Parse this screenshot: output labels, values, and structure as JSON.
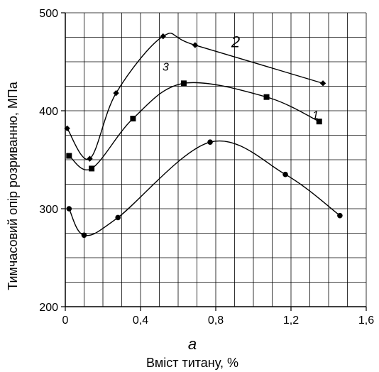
{
  "chart_data": {
    "type": "line",
    "panel_label": "а",
    "xlabel": "Вміст титану, %",
    "ylabel": "Тимчасовий опір розриванню, МПа",
    "xlim": [
      0,
      1.6
    ],
    "ylim": [
      200,
      500
    ],
    "x_ticks": [
      "0",
      "0,4",
      "0,8",
      "1,2",
      "1,6"
    ],
    "x_tick_values": [
      0,
      0.4,
      0.8,
      1.2,
      1.6
    ],
    "y_ticks": [
      "200",
      "300",
      "400",
      "500"
    ],
    "y_tick_values": [
      200,
      300,
      400,
      500
    ],
    "grid": true,
    "series": [
      {
        "name": "1",
        "marker": "circle",
        "points": [
          [
            0.02,
            300
          ],
          [
            0.1,
            273
          ],
          [
            0.28,
            291
          ],
          [
            0.77,
            368
          ],
          [
            1.17,
            335
          ],
          [
            1.46,
            293
          ]
        ]
      },
      {
        "name": "2",
        "marker": "diamond",
        "points": [
          [
            0.01,
            382
          ],
          [
            0.13,
            351
          ],
          [
            0.27,
            418
          ],
          [
            0.52,
            476
          ],
          [
            0.69,
            467
          ],
          [
            1.37,
            428
          ]
        ]
      },
      {
        "name": "3",
        "marker": "square",
        "points": [
          [
            0.02,
            354
          ],
          [
            0.14,
            341
          ],
          [
            0.36,
            392
          ],
          [
            0.63,
            428
          ],
          [
            1.07,
            414
          ],
          [
            1.35,
            389
          ]
        ]
      }
    ]
  }
}
